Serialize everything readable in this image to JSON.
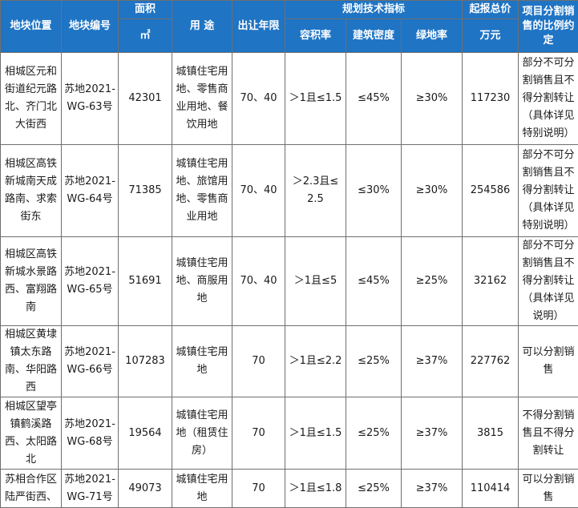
{
  "header": {
    "location": "地块位置",
    "plot_no": "地块编号",
    "area": "面积",
    "area_unit": "㎡",
    "usage": "用 途",
    "years": "出让年限",
    "tech": "规划技术指标",
    "far": "容积率",
    "density": "建筑密度",
    "green": "绿地率",
    "start_price": "起报总价",
    "price_unit": "万元",
    "split_rule": "项目分割销售的比例约定"
  },
  "rows": [
    {
      "location": "相城区元和街道纪元路北、齐门北大街西",
      "plot_no": "苏地2021-WG-63号",
      "area": "42301",
      "usage": "城镇住宅用地、零售商业用地、餐饮用地",
      "years": "70、40",
      "far": "＞1且≤1.5",
      "density": "≤45%",
      "green": "≥30%",
      "price": "117230",
      "split": "部分不可分割销售且不得分割转让（具体详见特别说明）"
    },
    {
      "location": "相城区高铁新城南天成路南、求索街东",
      "plot_no": "苏地2021-WG-64号",
      "area": "71385",
      "usage": "城镇住宅用地、旅馆用地、零售商业用地",
      "years": "70、40",
      "far": "＞2.3且≤2.5",
      "density": "≤30%",
      "green": "≥30%",
      "price": "254586",
      "split": "部分不可分割销售且不得分割转让（具体详见特别说明）"
    },
    {
      "location": "相城区高铁新城水景路西、富翔路南",
      "plot_no": "苏地2021-WG-65号",
      "area": "51691",
      "usage": "城镇住宅用地、商服用地",
      "years": "70、40",
      "far": "＞1且≤5",
      "density": "≤45%",
      "green": "≥25%",
      "price": "32162",
      "split": "部分不可分割销售且不得分割转让（具体详见说明）"
    },
    {
      "location": "相城区黄埭镇太东路南、华阳路西",
      "plot_no": "苏地2021-WG-66号",
      "area": "107283",
      "usage": "城镇住宅用地",
      "years": "70",
      "far": "＞1且≤2.2",
      "density": "≤25%",
      "green": "≥37%",
      "price": "227762",
      "split": "可以分割销售"
    },
    {
      "location": "相城区望亭镇鹤溪路西、太阳路北",
      "plot_no": "苏地2021-WG-68号",
      "area": "19564",
      "usage": "城镇住宅用地（租赁住房）",
      "years": "70",
      "far": "＞1且≤1.5",
      "density": "≤25%",
      "green": "≥37%",
      "price": "3815",
      "split": "不得分割销售且不得分割转让"
    },
    {
      "location": "苏相合作区陆严街西、",
      "plot_no": "苏地2021-WG-71号",
      "area": "49073",
      "usage": "城镇住宅用地",
      "years": "70",
      "far": "＞1且≤1.8",
      "density": "≤25%",
      "green": "≥37%",
      "price": "110414",
      "split": "可以分割销售"
    }
  ]
}
